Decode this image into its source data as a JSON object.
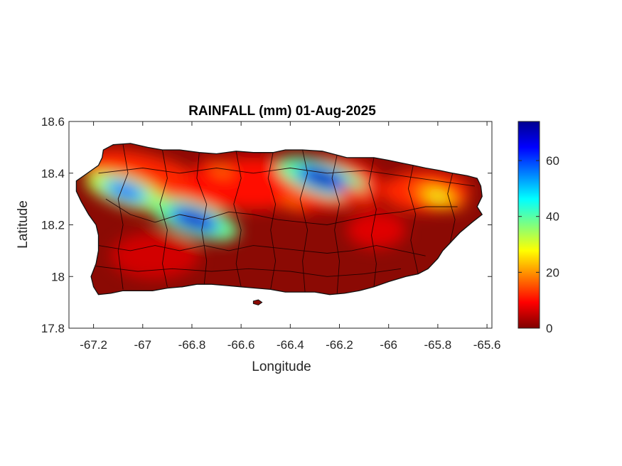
{
  "chart_data": {
    "type": "heatmap",
    "title": "RAINFALL (mm) 01-Aug-2025",
    "xlabel": "Longitude",
    "ylabel": "Latitude",
    "xlim": [
      -67.3,
      -65.58
    ],
    "ylim": [
      17.8,
      18.6
    ],
    "x_ticks": [
      -67.2,
      -67,
      -66.8,
      -66.6,
      -66.4,
      -66.2,
      -66,
      -65.8,
      -65.6
    ],
    "x_tick_labels": [
      "-67.2",
      "-67",
      "-66.8",
      "-66.6",
      "-66.4",
      "-66.2",
      "-66",
      "-65.8",
      "-65.6"
    ],
    "y_ticks": [
      17.8,
      18,
      18.2,
      18.4,
      18.6
    ],
    "y_tick_labels": [
      "17.8",
      "18",
      "18.2",
      "18.4",
      "18.6"
    ],
    "colormap": "jet",
    "colorbar": {
      "min": 0,
      "max": 74,
      "ticks": [
        0,
        20,
        40,
        60
      ],
      "tick_labels": [
        "0",
        "20",
        "40",
        "60"
      ],
      "colors": [
        "#7f0000",
        "#ff0000",
        "#ff7f00",
        "#ffff00",
        "#7fff7f",
        "#00ffff",
        "#007fff",
        "#0000ff",
        "#00008f"
      ]
    },
    "rainfall_maxima": [
      {
        "lon": -67.07,
        "lat": 18.33,
        "value": 60
      },
      {
        "lon": -66.79,
        "lat": 18.22,
        "value": 70
      },
      {
        "lon": -66.27,
        "lat": 18.38,
        "value": 72
      },
      {
        "lon": -65.8,
        "lat": 18.31,
        "value": 30
      },
      {
        "lon": -66.68,
        "lat": 18.41,
        "value": 18
      },
      {
        "lon": -66.39,
        "lat": 18.29,
        "value": 18
      },
      {
        "lon": -66.12,
        "lat": 18.31,
        "value": 15
      }
    ],
    "background_value": 3,
    "grid": false,
    "legend": "colorbar-right"
  }
}
